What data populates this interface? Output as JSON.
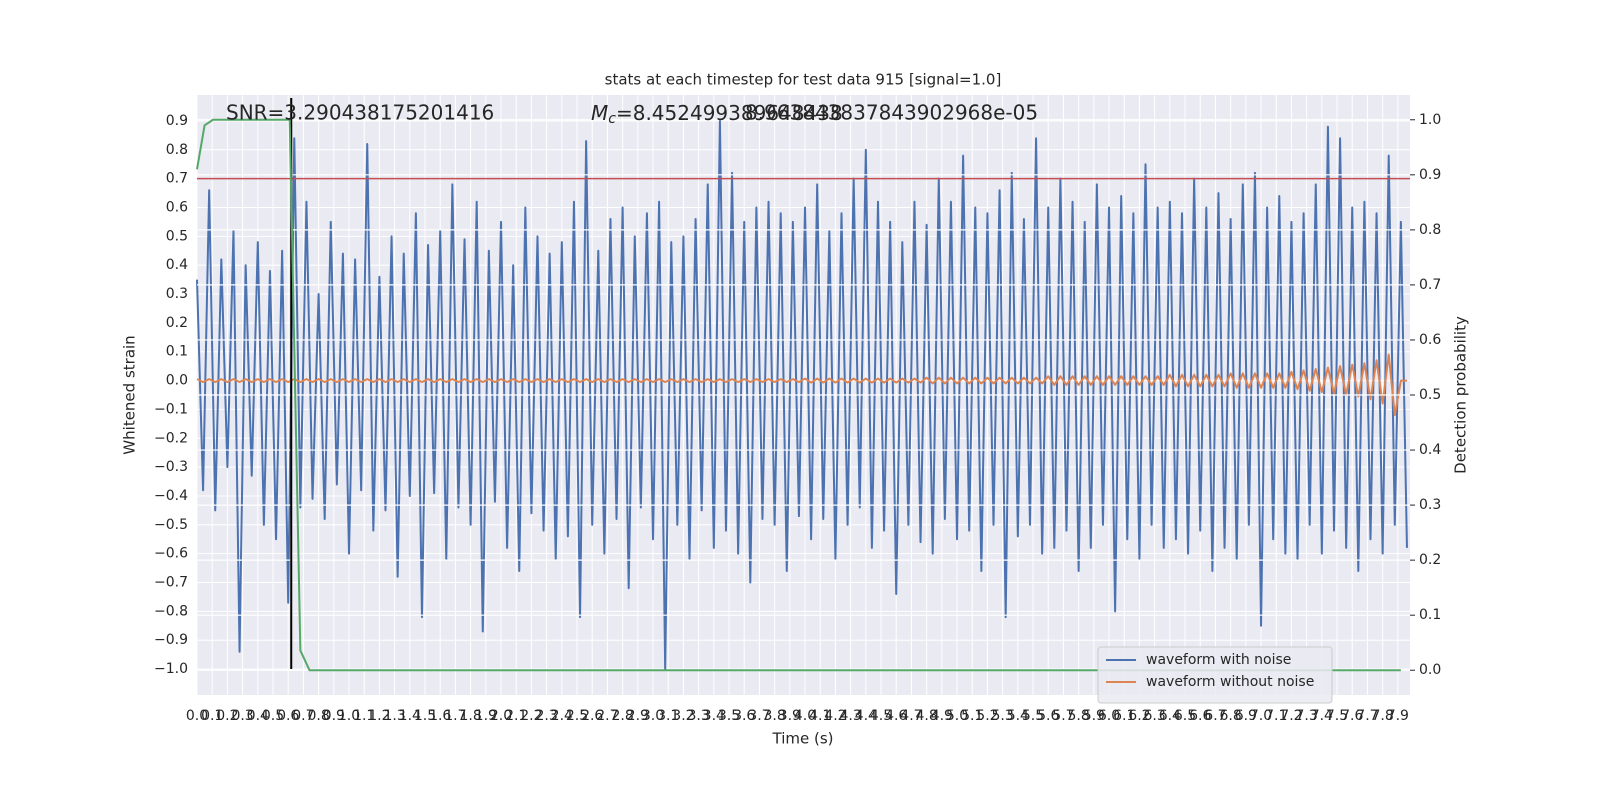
{
  "chart_data": {
    "type": "line",
    "title": "stats at each timestep for test data 915 [signal=1.0]",
    "x_label": "Time (s)",
    "y_label": "Whitened strain",
    "y2_label": "Detection probability",
    "snr_annotation": "SNR=3.290438175201416",
    "mc_annotation": {
      "symbol": "M",
      "subscript": "c",
      "text": "=8.452499389648438"
    },
    "extra_annotation": "8.963843837843902968e-05",
    "grid": true,
    "legend": "lower right",
    "hline": {
      "value": 0.7,
      "color": "#c44e52"
    },
    "vline": {
      "value": 0.62,
      "color": "#000000"
    },
    "xlim": [
      0,
      7.98
    ],
    "ylim": [
      -1.09,
      0.99
    ],
    "y2lim": [
      -0.045,
      1.045
    ],
    "xticks": [
      {
        "value": 0,
        "label": "0.0"
      },
      0.1,
      0.2,
      0.3,
      0.4,
      0.5,
      0.6,
      0.7,
      0.8,
      0.9,
      {
        "value": 1,
        "label": "1.0"
      },
      1.1,
      1.2,
      1.3,
      1.4,
      1.5,
      1.6,
      1.7,
      1.8,
      1.9,
      {
        "value": 2,
        "label": "2.0"
      },
      2.1,
      2.2,
      2.3,
      2.4,
      2.5,
      2.6,
      2.7,
      2.8,
      2.9,
      {
        "value": 3,
        "label": "3.0"
      },
      3.1,
      3.2,
      3.3,
      3.4,
      3.5,
      3.6,
      3.7,
      3.8,
      3.9,
      {
        "value": 4,
        "label": "4.0"
      },
      4.1,
      4.2,
      4.3,
      4.4,
      4.5,
      4.6,
      4.7,
      4.8,
      4.9,
      {
        "value": 5,
        "label": "5.0"
      },
      5.1,
      5.2,
      5.3,
      5.4,
      5.5,
      5.6,
      5.7,
      5.8,
      5.9,
      {
        "value": 6,
        "label": "6.0"
      },
      6.1,
      6.2,
      6.3,
      6.4,
      6.5,
      6.6,
      6.7,
      6.8,
      6.9,
      {
        "value": 7,
        "label": "7.0"
      },
      7.1,
      7.2,
      7.3,
      7.4,
      7.5,
      7.6,
      7.7,
      7.8,
      7.9
    ],
    "yticks": [
      {
        "value": -1,
        "label": "−1.0"
      },
      {
        "value": -0.9,
        "label": "−0.9"
      },
      {
        "value": -0.8,
        "label": "−0.8"
      },
      {
        "value": -0.7,
        "label": "−0.7"
      },
      {
        "value": -0.6,
        "label": "−0.6"
      },
      {
        "value": -0.5,
        "label": "−0.5"
      },
      {
        "value": -0.4,
        "label": "−0.4"
      },
      {
        "value": -0.3,
        "label": "−0.3"
      },
      {
        "value": -0.2,
        "label": "−0.2"
      },
      {
        "value": -0.1,
        "label": "−0.1"
      },
      {
        "value": 0,
        "label": "0.0"
      },
      0.1,
      0.2,
      0.3,
      0.4,
      0.5,
      0.6,
      0.7,
      0.8,
      0.9
    ],
    "y2ticks": [
      {
        "value": 0,
        "label": "0.0"
      },
      0.1,
      0.2,
      0.3,
      0.4,
      0.5,
      0.6,
      0.7,
      0.8,
      0.9,
      {
        "value": 1,
        "label": "1.0"
      }
    ],
    "x": [
      0,
      0.04,
      0.08,
      0.12,
      0.16,
      0.2,
      0.24,
      0.28,
      0.32,
      0.36,
      0.4,
      0.44,
      0.48,
      0.52,
      0.56,
      0.6,
      0.64,
      0.68,
      0.72,
      0.76,
      0.8,
      0.84,
      0.88,
      0.92,
      0.96,
      1,
      1.04,
      1.08,
      1.12,
      1.16,
      1.2,
      1.24,
      1.28,
      1.32,
      1.36,
      1.4,
      1.44,
      1.48,
      1.52,
      1.56,
      1.6,
      1.64,
      1.68,
      1.72,
      1.76,
      1.8,
      1.84,
      1.88,
      1.92,
      1.96,
      2,
      2.04,
      2.08,
      2.12,
      2.16,
      2.2,
      2.24,
      2.28,
      2.32,
      2.36,
      2.4,
      2.44,
      2.48,
      2.52,
      2.56,
      2.6,
      2.64,
      2.68,
      2.72,
      2.76,
      2.8,
      2.84,
      2.88,
      2.92,
      2.96,
      3,
      3.04,
      3.08,
      3.12,
      3.16,
      3.2,
      3.24,
      3.28,
      3.32,
      3.36,
      3.4,
      3.44,
      3.48,
      3.52,
      3.56,
      3.6,
      3.64,
      3.68,
      3.72,
      3.76,
      3.8,
      3.84,
      3.88,
      3.92,
      3.96,
      4,
      4.04,
      4.08,
      4.12,
      4.16,
      4.2,
      4.24,
      4.28,
      4.32,
      4.36,
      4.4,
      4.44,
      4.48,
      4.52,
      4.56,
      4.6,
      4.64,
      4.68,
      4.72,
      4.76,
      4.8,
      4.84,
      4.88,
      4.92,
      4.96,
      5,
      5.04,
      5.08,
      5.12,
      5.16,
      5.2,
      5.24,
      5.28,
      5.32,
      5.36,
      5.4,
      5.44,
      5.48,
      5.52,
      5.56,
      5.6,
      5.64,
      5.68,
      5.72,
      5.76,
      5.8,
      5.84,
      5.88,
      5.92,
      5.96,
      6,
      6.04,
      6.08,
      6.12,
      6.16,
      6.2,
      6.24,
      6.28,
      6.32,
      6.36,
      6.4,
      6.44,
      6.48,
      6.52,
      6.56,
      6.6,
      6.64,
      6.68,
      6.72,
      6.76,
      6.8,
      6.84,
      6.88,
      6.92,
      6.96,
      7,
      7.04,
      7.08,
      7.12,
      7.16,
      7.2,
      7.24,
      7.28,
      7.32,
      7.36,
      7.4,
      7.44,
      7.48,
      7.52,
      7.56,
      7.6,
      7.64,
      7.68,
      7.72,
      7.76,
      7.8,
      7.84,
      7.88,
      7.92,
      7.96
    ],
    "series": [
      {
        "name": "waveform with noise",
        "color": "#4c72b0",
        "values": [
          0.35,
          -0.38,
          0.66,
          -0.45,
          0.42,
          -0.3,
          0.52,
          -0.94,
          0.4,
          -0.33,
          0.48,
          -0.5,
          0.38,
          -0.55,
          0.45,
          -0.77,
          0.84,
          -0.44,
          0.62,
          -0.41,
          0.3,
          -0.48,
          0.55,
          -0.36,
          0.44,
          -0.6,
          0.42,
          -0.38,
          0.82,
          -0.52,
          0.36,
          -0.45,
          0.5,
          -0.68,
          0.44,
          -0.4,
          0.58,
          -0.82,
          0.47,
          -0.39,
          0.52,
          -0.62,
          0.68,
          -0.44,
          0.49,
          -0.5,
          0.62,
          -0.87,
          0.45,
          -0.42,
          0.55,
          -0.58,
          0.4,
          -0.66,
          0.6,
          -0.46,
          0.5,
          -0.52,
          0.44,
          -0.62,
          0.48,
          -0.54,
          0.62,
          -0.82,
          0.83,
          -0.5,
          0.45,
          -0.6,
          0.56,
          -0.48,
          0.6,
          -0.72,
          0.5,
          -0.44,
          0.58,
          -0.55,
          0.62,
          -1.0,
          0.48,
          -0.5,
          0.5,
          -0.62,
          0.56,
          -0.45,
          0.68,
          -0.58,
          0.9,
          -0.52,
          0.72,
          -0.6,
          0.55,
          -0.7,
          0.6,
          -0.48,
          0.62,
          -0.5,
          0.58,
          -0.66,
          0.55,
          -0.47,
          0.6,
          -0.55,
          0.68,
          -0.48,
          0.52,
          -0.62,
          0.58,
          -0.5,
          0.7,
          -0.44,
          0.8,
          -0.58,
          0.62,
          -0.52,
          0.55,
          -0.74,
          0.48,
          -0.5,
          0.62,
          -0.56,
          0.54,
          -0.6,
          0.7,
          -0.48,
          0.62,
          -0.55,
          0.78,
          -0.52,
          0.6,
          -0.66,
          0.58,
          -0.5,
          0.66,
          -0.82,
          0.72,
          -0.54,
          0.56,
          -0.5,
          0.84,
          -0.6,
          0.6,
          -0.58,
          0.7,
          -0.52,
          0.62,
          -0.66,
          0.55,
          -0.58,
          0.68,
          -0.5,
          0.6,
          -0.8,
          0.64,
          -0.55,
          0.58,
          -0.62,
          0.75,
          -0.5,
          0.6,
          -0.58,
          0.62,
          -0.55,
          0.58,
          -0.6,
          0.7,
          -0.52,
          0.6,
          -0.66,
          0.65,
          -0.58,
          0.56,
          -0.62,
          0.68,
          -0.5,
          0.72,
          -0.85,
          0.6,
          -0.55,
          0.64,
          -0.6,
          0.55,
          -0.62,
          0.58,
          -0.5,
          0.68,
          -0.6,
          0.88,
          -0.52,
          0.84,
          -0.58,
          0.6,
          -0.66,
          0.62,
          -0.55,
          0.58,
          -0.6,
          0.78,
          -0.5,
          0.55,
          -0.58
        ]
      },
      {
        "name": "waveform without noise",
        "color": "#dd8452",
        "values": [
          0.005,
          -0.005,
          0.005,
          -0.005,
          0.005,
          -0.005,
          0.005,
          -0.005,
          0.005,
          -0.005,
          0.005,
          -0.005,
          0.005,
          -0.005,
          0.005,
          -0.005,
          0.005,
          -0.005,
          0.005,
          -0.005,
          0.005,
          -0.005,
          0.005,
          -0.005,
          0.005,
          -0.005,
          0.005,
          -0.005,
          0.005,
          -0.005,
          0.005,
          -0.005,
          0.005,
          -0.005,
          0.005,
          -0.005,
          0.005,
          -0.005,
          0.005,
          -0.005,
          0.005,
          -0.005,
          0.005,
          -0.005,
          0.005,
          -0.005,
          0.005,
          -0.005,
          0.005,
          -0.005,
          0.005,
          -0.005,
          0.005,
          -0.005,
          0.005,
          -0.005,
          0.005,
          -0.005,
          0.005,
          -0.005,
          0.005,
          -0.005,
          0.005,
          -0.005,
          0.005,
          -0.005,
          0.005,
          -0.005,
          0.005,
          -0.005,
          0.005,
          -0.005,
          0.005,
          -0.005,
          0.005,
          -0.005,
          0.005,
          -0.005,
          0.005,
          -0.005,
          0.005,
          -0.005,
          0.005,
          -0.005,
          0.005,
          -0.005,
          0.005,
          -0.005,
          0.005,
          -0.005,
          0.005,
          -0.005,
          0.005,
          -0.005,
          0.005,
          -0.005,
          0.005,
          -0.005,
          0.005,
          -0.005,
          0.007,
          -0.007,
          0.007,
          -0.007,
          0.007,
          -0.007,
          0.007,
          -0.007,
          0.007,
          -0.007,
          0.007,
          -0.007,
          0.007,
          -0.007,
          0.007,
          -0.007,
          0.007,
          -0.007,
          0.007,
          -0.007,
          0.01,
          -0.01,
          0.01,
          -0.01,
          0.01,
          -0.01,
          0.01,
          -0.01,
          0.01,
          -0.01,
          0.01,
          -0.01,
          0.01,
          -0.01,
          0.01,
          -0.01,
          0.01,
          -0.01,
          0.01,
          -0.01,
          0.015,
          -0.015,
          0.015,
          -0.015,
          0.015,
          -0.015,
          0.015,
          -0.015,
          0.015,
          -0.015,
          0.015,
          -0.015,
          0.015,
          -0.015,
          0.015,
          -0.015,
          0.015,
          -0.015,
          0.015,
          -0.015,
          0.02,
          -0.02,
          0.02,
          -0.02,
          0.02,
          -0.02,
          0.02,
          -0.02,
          0.02,
          -0.02,
          0.025,
          -0.025,
          0.025,
          -0.025,
          0.025,
          -0.025,
          0.025,
          -0.025,
          0.025,
          -0.025,
          0.03,
          -0.03,
          0.035,
          -0.035,
          0.04,
          -0.04,
          0.045,
          -0.045,
          0.05,
          -0.05,
          0.055,
          -0.055,
          0.06,
          -0.065,
          0.07,
          -0.08,
          0.09,
          -0.12,
          0,
          0
        ]
      },
      {
        "color": "#55a868",
        "axis": "y2",
        "x": [
          0,
          0.05,
          0.105,
          0.61,
          0.68,
          0.74,
          7.92
        ],
        "values": [
          0.91,
          0.99,
          1.0,
          1.0,
          0.036,
          0,
          0
        ]
      }
    ]
  }
}
